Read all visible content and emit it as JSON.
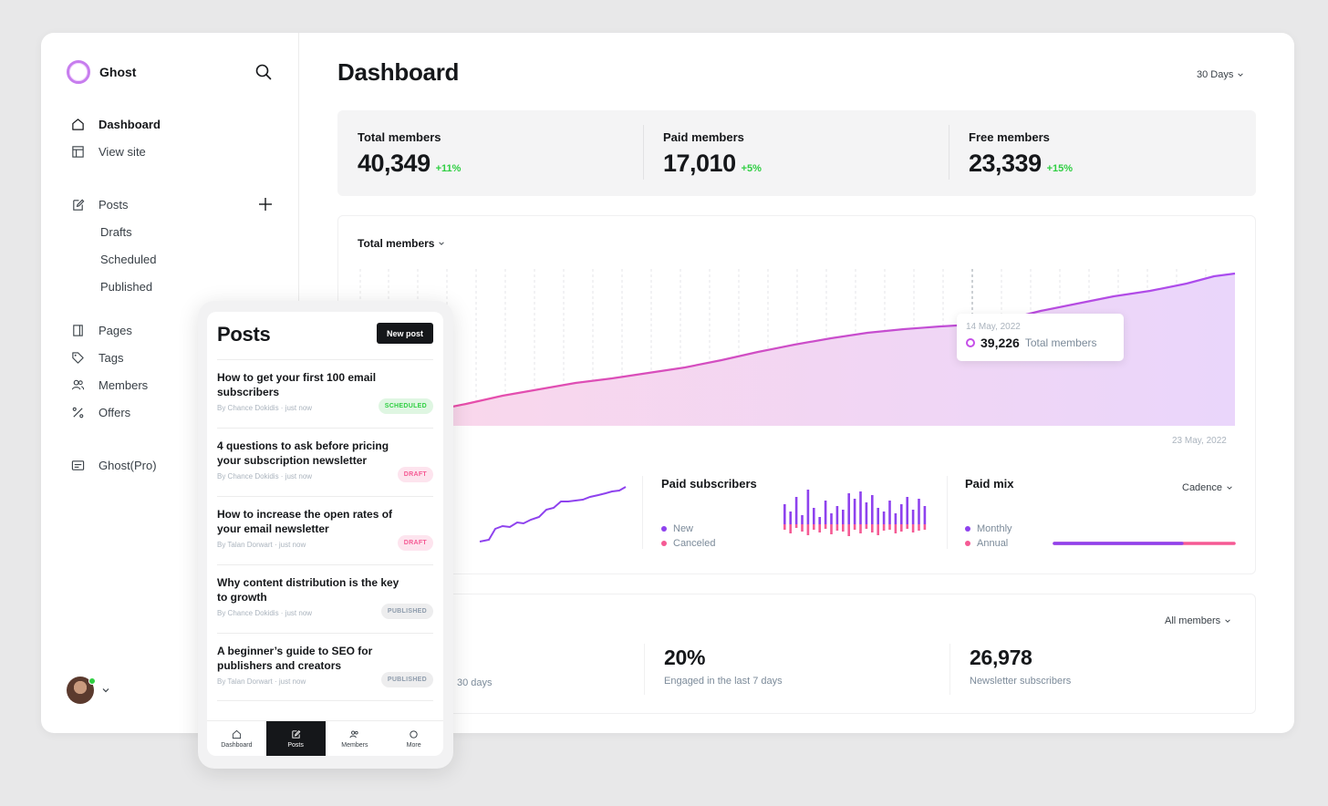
{
  "app": {
    "name": "Ghost"
  },
  "sidebar": {
    "items": [
      {
        "label": "Dashboard",
        "icon": "home-icon"
      },
      {
        "label": "View site",
        "icon": "window-icon"
      },
      {
        "label": "Posts",
        "icon": "edit-icon"
      },
      {
        "label": "Drafts"
      },
      {
        "label": "Scheduled"
      },
      {
        "label": "Published"
      },
      {
        "label": "Pages",
        "icon": "page-icon"
      },
      {
        "label": "Tags",
        "icon": "tag-icon"
      },
      {
        "label": "Members",
        "icon": "members-icon"
      },
      {
        "label": "Offers",
        "icon": "percent-icon"
      },
      {
        "label": "Ghost(Pro)",
        "icon": "card-icon"
      }
    ]
  },
  "header": {
    "title": "Dashboard",
    "range": "30 Days"
  },
  "kpis": [
    {
      "label": "Total members",
      "value": "40,349",
      "delta": "+11%"
    },
    {
      "label": "Paid members",
      "value": "17,010",
      "delta": "+5%"
    },
    {
      "label": "Free members",
      "value": "23,339",
      "delta": "+15%"
    }
  ],
  "chart": {
    "title": "Total members",
    "tooltip": {
      "date": "14 May, 2022",
      "value": "39,226",
      "label": "Total members"
    },
    "end_date": "23 May, 2022"
  },
  "paid_subscribers": {
    "title": "Paid subscribers",
    "legend": [
      "New",
      "Canceled"
    ]
  },
  "paid_mix": {
    "title": "Paid mix",
    "legend": [
      "Monthly",
      "Annual"
    ],
    "filter": "Cadence",
    "monthly_share": 0.71
  },
  "engagement": {
    "filter": "All members",
    "stats": [
      {
        "value": "",
        "label": "30 days"
      },
      {
        "value": "20%",
        "label": "Engaged in the last 7 days"
      },
      {
        "value": "26,978",
        "label": "Newsletter subscribers"
      }
    ]
  },
  "colors": {
    "accent": "#c54fe8",
    "pink": "#f55a94",
    "purple": "#8e42ee",
    "green": "#30cf43"
  },
  "phone": {
    "title": "Posts",
    "new_post": "New post",
    "posts": [
      {
        "title": "How to get your first 100 email subscribers",
        "meta": "By Chance Dokidis · just now",
        "status": "SCHEDULED"
      },
      {
        "title": "4 questions to ask before pricing your subscription newsletter",
        "meta": "By Chance Dokidis · just now",
        "status": "DRAFT"
      },
      {
        "title": "How to increase the open rates of your email newsletter",
        "meta": "By Talan Dorwart · just now",
        "status": "DRAFT"
      },
      {
        "title": "Why content distribution is the key to growth",
        "meta": "By Chance Dokidis · just now",
        "status": "PUBLISHED"
      },
      {
        "title": "A beginner’s guide to SEO for publishers and creators",
        "meta": "By Talan Dorwart · just now",
        "status": "PUBLISHED"
      }
    ],
    "tabs": [
      "Dashboard",
      "Posts",
      "Members",
      "More"
    ]
  }
}
